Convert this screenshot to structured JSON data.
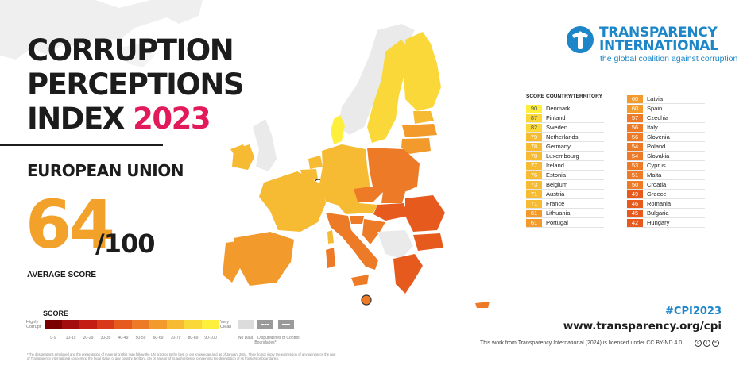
{
  "title": {
    "line1": "CORRUPTION",
    "line2": "PERCEPTIONS",
    "line3": "INDEX",
    "year": "2023"
  },
  "region": "EUROPEAN UNION",
  "average": {
    "score": "64",
    "total": "/100",
    "label": "AVERAGE SCORE"
  },
  "legend": {
    "title": "SCORE",
    "low_end": "Highly Corrupt",
    "high_end": "Very Clean",
    "ranges": [
      "0-9",
      "10-19",
      "20-29",
      "30-39",
      "40-49",
      "50-59",
      "60-69",
      "70-79",
      "80-89",
      "90-100"
    ],
    "colors": [
      "#7a0000",
      "#a30d0d",
      "#c41e14",
      "#d8391b",
      "#e65a1e",
      "#ec7a26",
      "#f29a2c",
      "#f7bb33",
      "#fbd83a",
      "#ffef3d"
    ],
    "no_data": "No Data",
    "disputed": "Disputed Boundaries*",
    "lines_of_control": "Lines of Control*"
  },
  "footnote": "*The designations employed and the presentation of material on this map follow the UN practice to the best of our knowledge and as of January 2024. They do not imply the expression of any opinion on the part of Transparency International concerning the legal status of any country, territory, city or area or of its authorities or concerning the delimitation of its frontiers or boundaries.",
  "brand": {
    "name_line1": "TRANSPARENCY",
    "name_line2": "INTERNATIONAL",
    "tagline": "the global coalition against corruption",
    "color": "#1c86c8"
  },
  "table": {
    "score_header": "SCORE",
    "country_header": "COUNTRY/TERRITORY",
    "left": [
      {
        "score": "90",
        "country": "Denmark",
        "color": "#ffef3d"
      },
      {
        "score": "87",
        "country": "Finland",
        "color": "#fbd83a"
      },
      {
        "score": "82",
        "country": "Sweden",
        "color": "#fbd83a"
      },
      {
        "score": "79",
        "country": "Netherlands",
        "color": "#f7bb33"
      },
      {
        "score": "78",
        "country": "Germany",
        "color": "#f7bb33"
      },
      {
        "score": "78",
        "country": "Luxembourg",
        "color": "#f7bb33"
      },
      {
        "score": "77",
        "country": "Ireland",
        "color": "#f7bb33"
      },
      {
        "score": "76",
        "country": "Estonia",
        "color": "#f7bb33"
      },
      {
        "score": "73",
        "country": "Belgium",
        "color": "#f7bb33"
      },
      {
        "score": "71",
        "country": "Austria",
        "color": "#f7bb33"
      },
      {
        "score": "71",
        "country": "France",
        "color": "#f7bb33"
      },
      {
        "score": "61",
        "country": "Lithuania",
        "color": "#f29a2c"
      },
      {
        "score": "61",
        "country": "Portugal",
        "color": "#f29a2c"
      }
    ],
    "right": [
      {
        "score": "60",
        "country": "Latvia",
        "color": "#f29a2c"
      },
      {
        "score": "60",
        "country": "Spain",
        "color": "#f29a2c"
      },
      {
        "score": "57",
        "country": "Czechia",
        "color": "#ec7a26"
      },
      {
        "score": "56",
        "country": "Italy",
        "color": "#ec7a26"
      },
      {
        "score": "56",
        "country": "Slovenia",
        "color": "#ec7a26"
      },
      {
        "score": "54",
        "country": "Poland",
        "color": "#ec7a26"
      },
      {
        "score": "54",
        "country": "Slovakia",
        "color": "#ec7a26"
      },
      {
        "score": "53",
        "country": "Cyprus",
        "color": "#ec7a26"
      },
      {
        "score": "51",
        "country": "Malta",
        "color": "#ec7a26"
      },
      {
        "score": "50",
        "country": "Croatia",
        "color": "#ec7a26"
      },
      {
        "score": "49",
        "country": "Greece",
        "color": "#e65a1e"
      },
      {
        "score": "46",
        "country": "Romania",
        "color": "#e65a1e"
      },
      {
        "score": "45",
        "country": "Bulgaria",
        "color": "#e65a1e"
      },
      {
        "score": "42",
        "country": "Hungary",
        "color": "#e65a1e"
      }
    ]
  },
  "hashtag": "#CPI2023",
  "website": "www.transparency.org/cpi",
  "license": "This work from Transparency International (2024) is licensed under CC BY-ND 4.0"
}
